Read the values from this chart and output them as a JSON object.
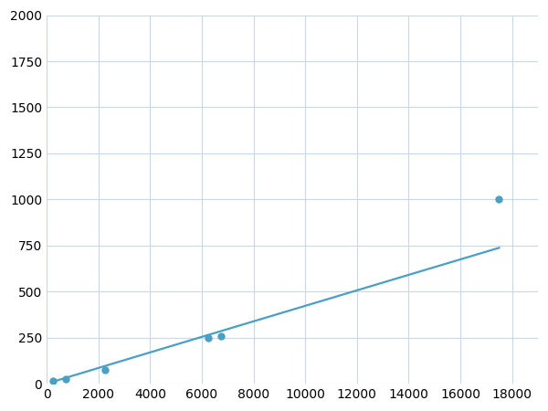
{
  "x": [
    250,
    750,
    2250,
    6250,
    6750,
    17500
  ],
  "y": [
    15,
    25,
    75,
    250,
    260,
    1000
  ],
  "line_color": "#4a9fc4",
  "marker_color": "#4a9fc4",
  "marker_size": 5,
  "line_width": 1.6,
  "xlim": [
    0,
    19000
  ],
  "ylim": [
    0,
    2000
  ],
  "xticks": [
    0,
    2000,
    4000,
    6000,
    8000,
    10000,
    12000,
    14000,
    16000,
    18000
  ],
  "yticks": [
    0,
    250,
    500,
    750,
    1000,
    1250,
    1500,
    1750,
    2000
  ],
  "grid_color": "#c8d8e8",
  "background_color": "#ffffff",
  "tick_fontsize": 10
}
